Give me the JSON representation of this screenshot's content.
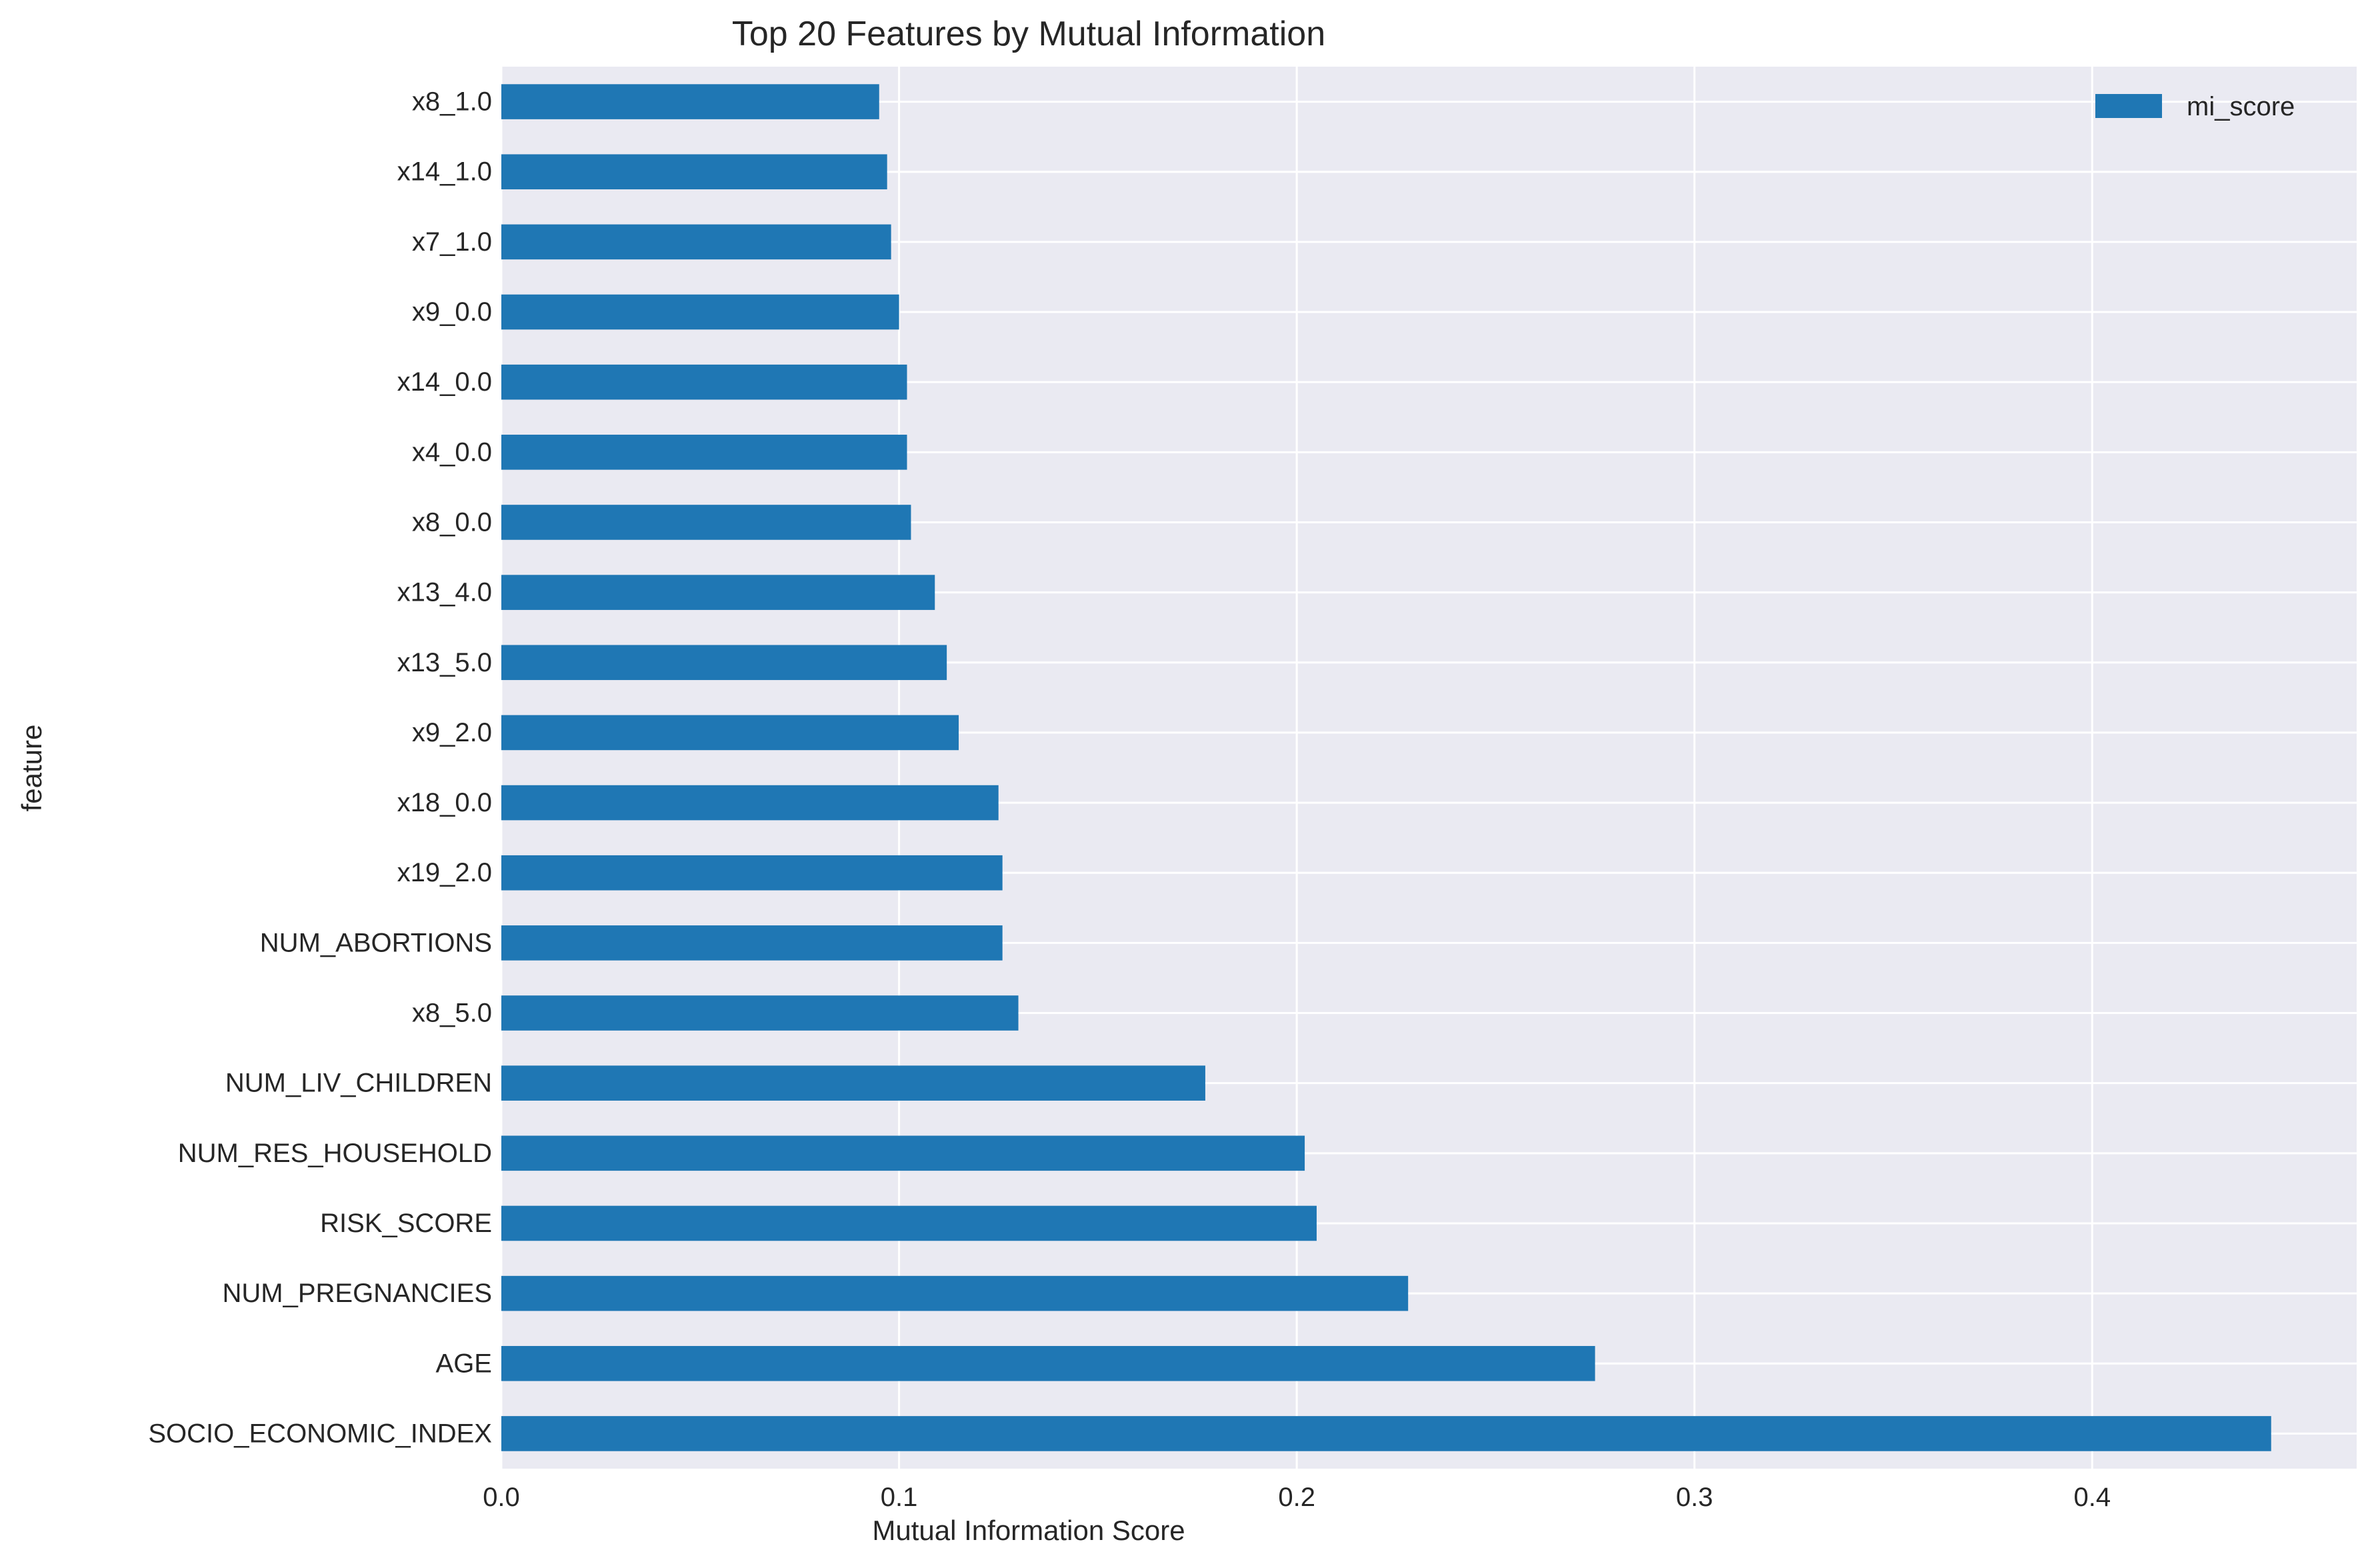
{
  "chart_data": {
    "type": "bar",
    "orientation": "horizontal",
    "title": "Top 20 Features by Mutual Information",
    "xlabel": "Mutual Information Score",
    "ylabel": "feature",
    "xlim": [
      0,
      0.4665
    ],
    "xticks": [
      0.0,
      0.1,
      0.2,
      0.3,
      0.4
    ],
    "xtick_labels": [
      "0.0",
      "0.1",
      "0.2",
      "0.3",
      "0.4"
    ],
    "grid": true,
    "legend_position": "top-right",
    "categories": [
      "SOCIO_ECONOMIC_INDEX",
      "AGE",
      "NUM_PREGNANCIES",
      "RISK_SCORE",
      "NUM_RES_HOUSEHOLD",
      "NUM_LIV_CHILDREN",
      "x8_5.0",
      "NUM_ABORTIONS",
      "x19_2.0",
      "x18_0.0",
      "x9_2.0",
      "x13_5.0",
      "x13_4.0",
      "x8_0.0",
      "x4_0.0",
      "x14_0.0",
      "x9_0.0",
      "x7_1.0",
      "x14_1.0",
      "x8_1.0"
    ],
    "series": [
      {
        "name": "mi_score",
        "color": "#1f77b4",
        "values": [
          0.445,
          0.275,
          0.228,
          0.205,
          0.202,
          0.177,
          0.13,
          0.126,
          0.126,
          0.125,
          0.115,
          0.112,
          0.109,
          0.103,
          0.102,
          0.102,
          0.1,
          0.098,
          0.097,
          0.095
        ]
      }
    ],
    "colors": {
      "plot_background": "#eaeaf2",
      "grid": "#ffffff",
      "bar": "#1f77b4"
    }
  }
}
